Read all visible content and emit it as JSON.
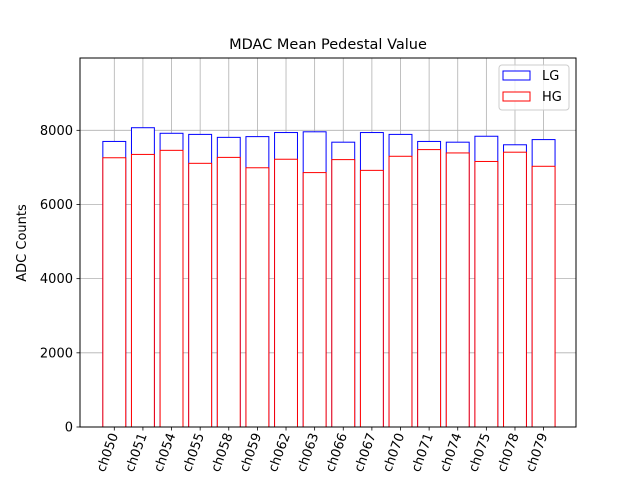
{
  "chart_data": {
    "type": "bar",
    "title": "MDAC Mean Pedestal Value",
    "xlabel": "",
    "ylabel": "ADC Counts",
    "ylim": [
      0,
      9950
    ],
    "yticks": [
      0,
      2000,
      4000,
      6000,
      8000
    ],
    "grid": true,
    "legend_position": "top-right",
    "categories": [
      "ch050",
      "ch051",
      "ch054",
      "ch055",
      "ch058",
      "ch059",
      "ch062",
      "ch063",
      "ch066",
      "ch067",
      "ch070",
      "ch071",
      "ch074",
      "ch075",
      "ch078",
      "ch079"
    ],
    "series": [
      {
        "name": "LG",
        "color": "#0000ff",
        "values": [
          7700,
          8070,
          7920,
          7890,
          7810,
          7830,
          7940,
          7960,
          7680,
          7940,
          7890,
          7700,
          7680,
          7840,
          7610,
          7750
        ]
      },
      {
        "name": "HG",
        "color": "#ff0000",
        "values": [
          7260,
          7350,
          7460,
          7110,
          7270,
          6990,
          7220,
          6860,
          7210,
          6920,
          7300,
          7480,
          7390,
          7160,
          7410,
          7030
        ]
      }
    ]
  }
}
